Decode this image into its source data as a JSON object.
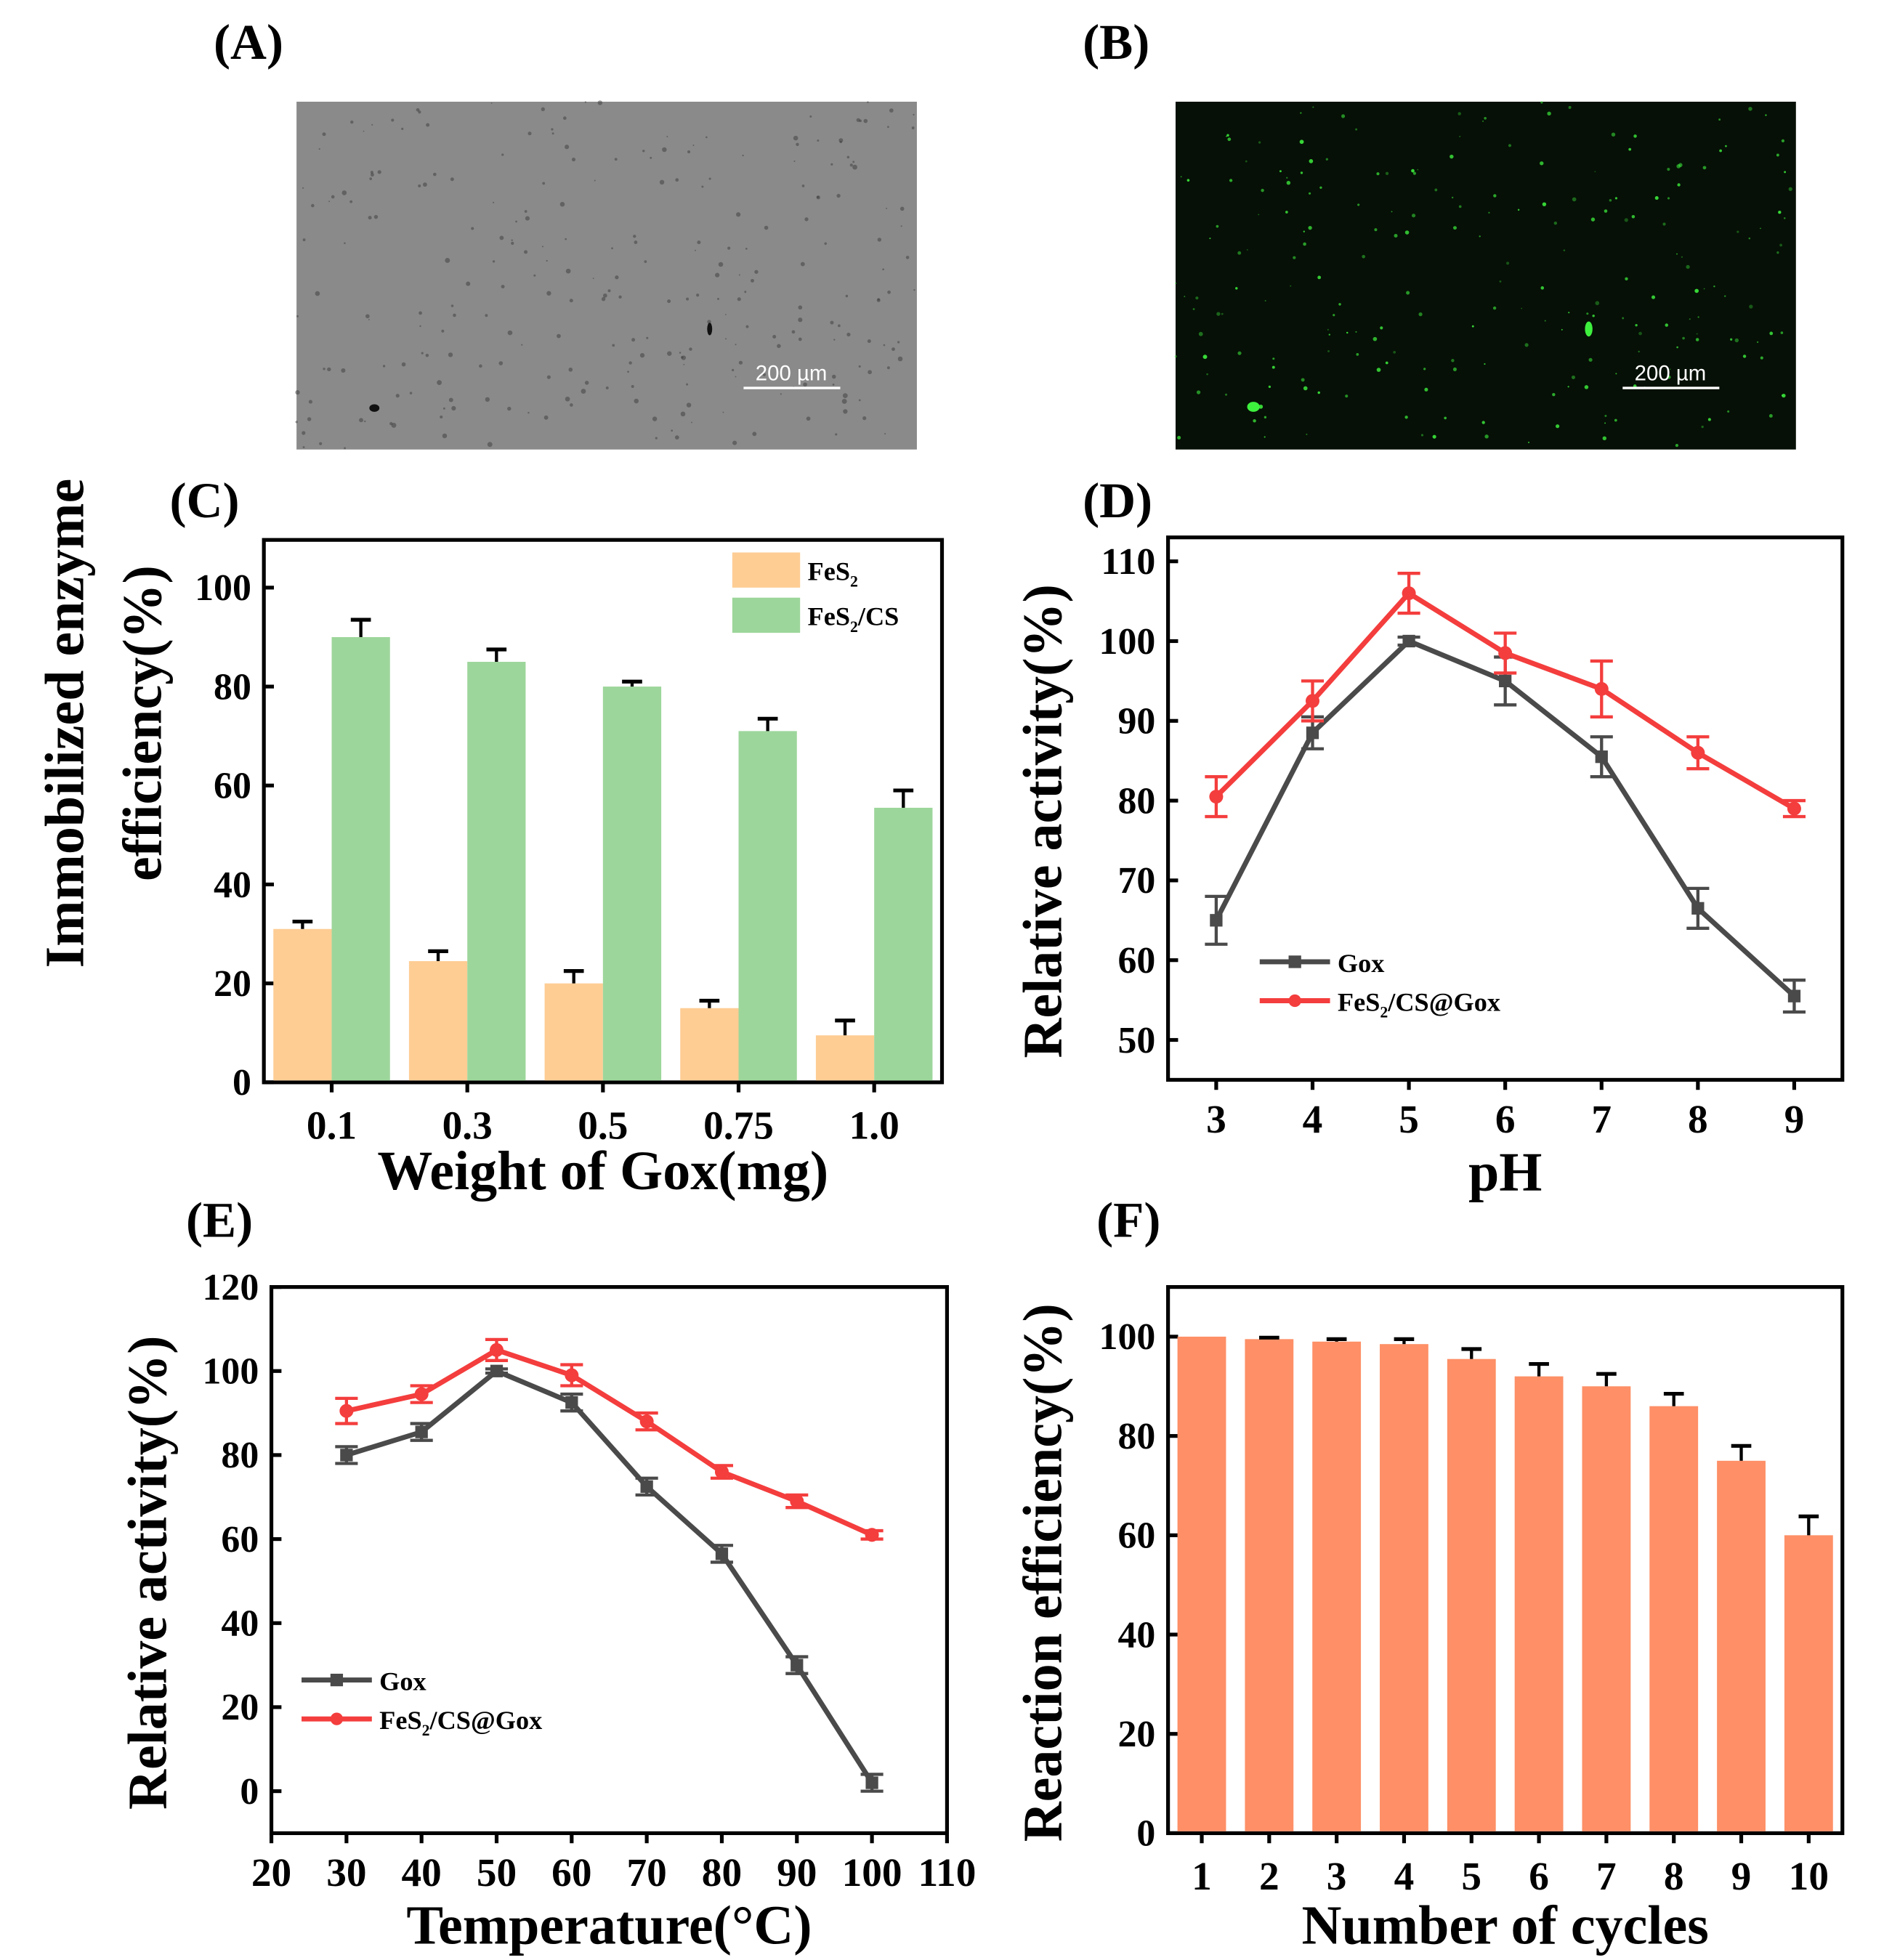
{
  "panels": {
    "A": "(A)",
    "B": "(B)",
    "C": "(C)",
    "D": "(D)",
    "E": "(E)",
    "F": "(F)"
  },
  "micrographs": {
    "A": {
      "type": "bright-field image",
      "scale_bar": "200 µm",
      "bg": "#8a8a8a"
    },
    "B": {
      "type": "fluorescence image",
      "scale_bar": "200 µm",
      "bg": "#061006",
      "dot_color": "#3ef03e"
    }
  },
  "chart_data": [
    {
      "id": "C",
      "type": "bar",
      "xlabel": "Weight of Gox(mg)",
      "ylabel": [
        "Immobilized enzyme",
        "efficiency(%)"
      ],
      "categories": [
        "0.1",
        "0.3",
        "0.5",
        "0.75",
        "1.0"
      ],
      "ylim": [
        0,
        100
      ],
      "yticks": [
        0,
        20,
        40,
        60,
        80,
        100
      ],
      "legend": "top-right",
      "series": [
        {
          "name": "FeS",
          "sub": "2",
          "suffix": "",
          "color": "#fecd94",
          "values": [
            31,
            24.5,
            20,
            15,
            9.5
          ],
          "errors": [
            1.5,
            2,
            2.5,
            1.5,
            3
          ]
        },
        {
          "name": "FeS",
          "sub": "2",
          "suffix": "/CS",
          "color": "#9dd69b",
          "values": [
            90,
            85,
            80,
            71,
            55.5
          ],
          "errors": [
            3.5,
            2.5,
            1,
            2.5,
            3.5
          ]
        }
      ]
    },
    {
      "id": "D",
      "type": "line",
      "xlabel": "pH",
      "ylabel": "Relative activity(%)",
      "x": [
        3,
        4,
        5,
        6,
        7,
        8,
        9
      ],
      "xlim": [
        2.5,
        9.5
      ],
      "xticks": [
        3,
        4,
        5,
        6,
        7,
        8,
        9
      ],
      "ylim": [
        45,
        113
      ],
      "yticks": [
        50,
        60,
        70,
        80,
        90,
        100,
        110
      ],
      "legend": "bottom-left",
      "series": [
        {
          "name": "Gox",
          "sub": "",
          "suffix": "",
          "color": "#4a4a4a",
          "marker": "square",
          "values": [
            65,
            88.5,
            100,
            95,
            85.5,
            66.5,
            55.5
          ],
          "errors": [
            3,
            2,
            0.5,
            3,
            2.5,
            2.5,
            2
          ]
        },
        {
          "name": "FeS",
          "sub": "2",
          "suffix": "/CS@Gox",
          "color": "#f43d3d",
          "marker": "circle",
          "values": [
            80.5,
            92.5,
            106,
            98.5,
            94,
            86,
            79
          ],
          "errors": [
            2.5,
            2.5,
            2.5,
            2.5,
            3.5,
            2,
            1
          ]
        }
      ]
    },
    {
      "id": "E",
      "type": "line",
      "xlabel": "Temperature(°C)",
      "ylabel": "Relative activity(%)",
      "x": [
        30,
        40,
        50,
        60,
        70,
        80,
        90,
        100
      ],
      "xlim": [
        20,
        110
      ],
      "xticks": [
        20,
        30,
        40,
        50,
        60,
        70,
        80,
        90,
        100,
        110
      ],
      "ylim": [
        -10,
        120
      ],
      "yticks": [
        0,
        20,
        40,
        60,
        80,
        100,
        120
      ],
      "legend": "bottom-left",
      "series": [
        {
          "name": "Gox",
          "sub": "",
          "suffix": "",
          "color": "#4a4a4a",
          "marker": "square",
          "values": [
            80,
            85.5,
            100,
            92.5,
            72.5,
            56.5,
            30,
            2
          ],
          "errors": [
            2,
            2,
            0.5,
            2,
            2,
            2,
            2,
            2
          ]
        },
        {
          "name": "FeS",
          "sub": "2",
          "suffix": "/CS@Gox",
          "color": "#f43d3d",
          "marker": "circle",
          "values": [
            90.5,
            94.5,
            105,
            99,
            88,
            76,
            69,
            61
          ],
          "errors": [
            3,
            2,
            2.5,
            2.5,
            2,
            1.5,
            1.5,
            1
          ]
        }
      ]
    },
    {
      "id": "F",
      "type": "bar",
      "xlabel": "Number of cycles",
      "ylabel": "Reaction efficiency(%)",
      "categories": [
        "1",
        "2",
        "3",
        "4",
        "5",
        "6",
        "7",
        "8",
        "9",
        "10"
      ],
      "ylim": [
        0,
        110
      ],
      "yticks": [
        0,
        20,
        40,
        60,
        80,
        100
      ],
      "series": [
        {
          "name": "Reaction efficiency",
          "color": "#fe8f66",
          "values": [
            100,
            99.5,
            99,
            98.5,
            95.5,
            92,
            90,
            86,
            75,
            60
          ],
          "errors": [
            0,
            0.3,
            0.5,
            1,
            2,
            2.5,
            2.5,
            2.5,
            3,
            3.8
          ]
        }
      ]
    }
  ]
}
